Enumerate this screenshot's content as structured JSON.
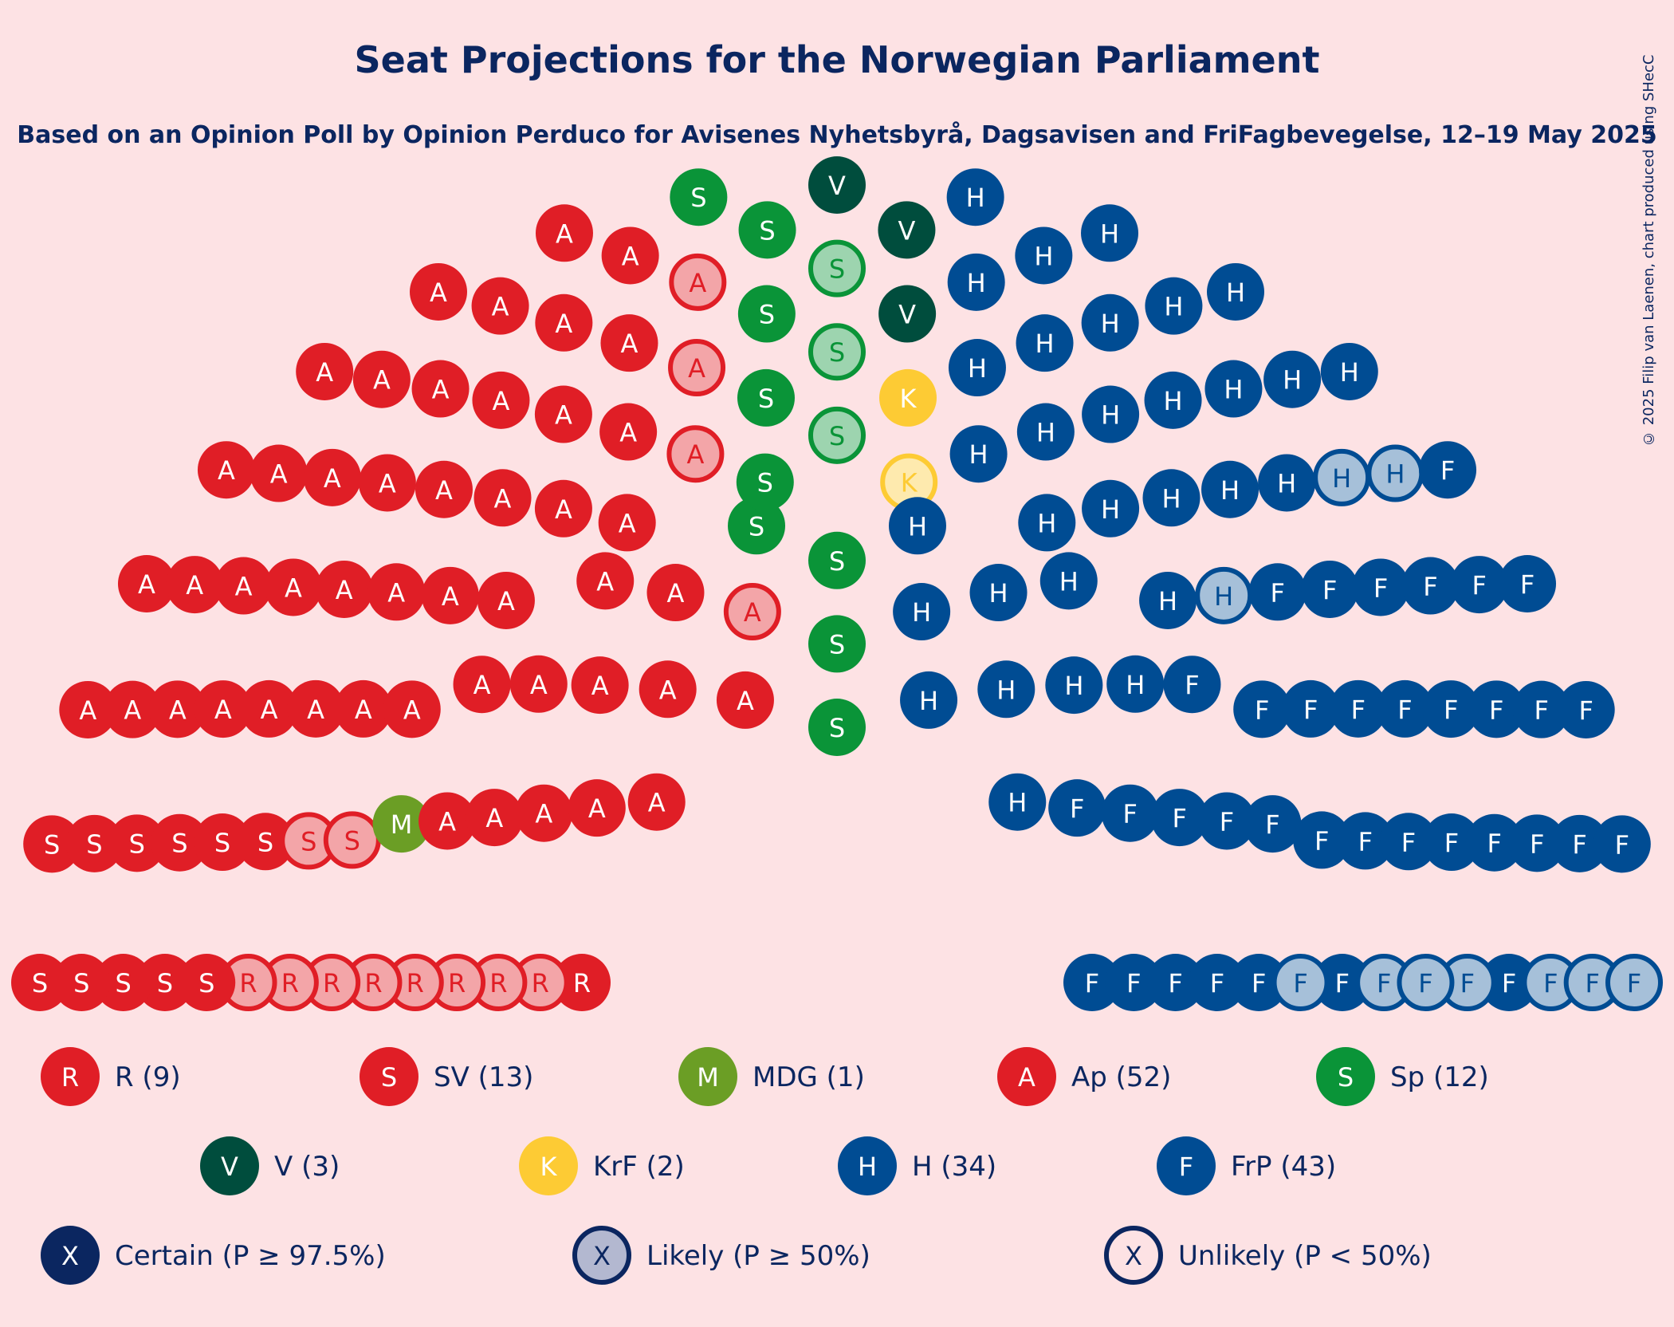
{
  "chart_data": {
    "type": "hemicycle",
    "title": "Seat Projections for the Norwegian Parliament",
    "subtitle": "Based on an Opinion Poll by Opinion Perduco for Avisenes Nyhetsbyrå, Dagsavisen and FriFagbevegelse, 12–19 May 2025",
    "credit": "© 2025 Filip van Laenen, chart produced using SHecC",
    "total_seats": 169,
    "parties": [
      {
        "abbr": "R",
        "name": "R",
        "seats": 9,
        "likely": 8,
        "color": "#e01e26"
      },
      {
        "abbr": "S",
        "name": "SV",
        "seats": 13,
        "likely": 2,
        "color": "#e01e26"
      },
      {
        "abbr": "M",
        "name": "MDG",
        "seats": 1,
        "likely": 0,
        "color": "#6b9e25"
      },
      {
        "abbr": "A",
        "name": "Ap",
        "seats": 52,
        "likely": 4,
        "color": "#e01e26"
      },
      {
        "abbr": "S",
        "name": "Sp",
        "seats": 12,
        "likely": 3,
        "color": "#0a9438"
      },
      {
        "abbr": "V",
        "name": "V",
        "seats": 3,
        "likely": 0,
        "color": "#004d3d"
      },
      {
        "abbr": "K",
        "name": "KrF",
        "seats": 2,
        "likely": 1,
        "color": "#fdcb34"
      },
      {
        "abbr": "H",
        "name": "H",
        "seats": 34,
        "likely": 3,
        "color": "#004c93"
      },
      {
        "abbr": "F",
        "name": "FrP",
        "seats": 43,
        "likely": 7,
        "color": "#004c93"
      }
    ],
    "legend_rows": [
      [
        "R (9)",
        "SV (13)",
        "MDG (1)",
        "Ap (52)",
        "Sp (12)"
      ],
      [
        "V (3)",
        "KrF (2)",
        "H (34)",
        "FrP (43)"
      ]
    ],
    "certainty": [
      {
        "symbol": "X",
        "label": "Certain (P ≥ 97.5%)"
      },
      {
        "symbol": "X",
        "label": "Likely (P ≥ 50%)"
      },
      {
        "symbol": "X",
        "label": "Unlikely (P < 50%)"
      }
    ],
    "colors": {
      "background": "#fde2e4",
      "text": "#0b2660",
      "likely_fill": "#b3b8d0",
      "certain": "#0b2660"
    }
  }
}
